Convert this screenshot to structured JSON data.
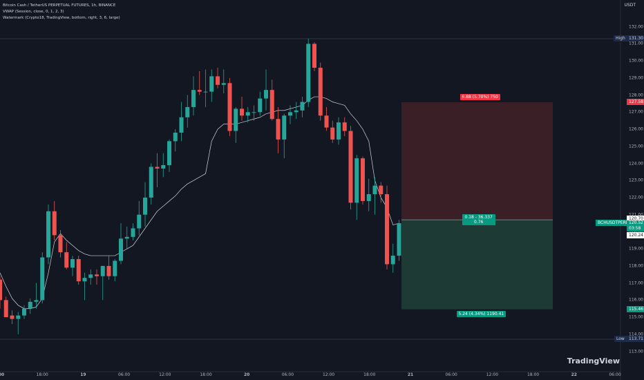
{
  "legend": {
    "symbol_line": "Bitcoin Cash / TetherUS PERPETUAL FUTURES, 1h, BINANCE",
    "vwap_line": "VWAP (Session, close, 0, 1, 2, 3)",
    "watermark_line": "Watermark (Crypto18, TradingView, bottom, right, 3, 6, large)"
  },
  "currency": "USDT",
  "watermark": "TradingView",
  "colors": {
    "up": "#26a69a",
    "down": "#ef5350",
    "vwap": "#d1d4dc",
    "bg": "#131722",
    "profit": "#1d3b34",
    "loss": "#3b1f26"
  },
  "y_ticks": [
    "132.00",
    "131.00",
    "130.00",
    "129.00",
    "128.00",
    "127.00",
    "126.00",
    "125.00",
    "124.00",
    "123.00",
    "122.00",
    "121.00",
    "120.00",
    "119.00",
    "118.00",
    "117.00",
    "116.00",
    "115.00",
    "114.00",
    "113.00"
  ],
  "x_ticks": [
    "00",
    "18:00",
    "19",
    "06:00",
    "12:00",
    "18:00",
    "20",
    "06:00",
    "12:00",
    "18:00",
    "21",
    "06:00",
    "12:00",
    "18:00",
    "22",
    "06:00"
  ],
  "labels": {
    "high_label": "High",
    "high_value": "131.30",
    "low_label": "Low",
    "low_value": "113.71",
    "stop_value": "127.58",
    "target_value": "115.46",
    "symbol_tag": "BCHUSDTPERP",
    "price_upper": "120.70",
    "price_current": "120.52",
    "price_countdown": "03:58",
    "price_lower": "120.24",
    "risk_text": "6.88 (5.70%) 750",
    "reward_text": "5.24 (4.34%) 1190.41",
    "position_text_1": "0.18 - 36.337",
    "position_text_2": "0.76"
  },
  "chart_data": {
    "type": "candlestick",
    "timeframe": "1h",
    "series": [
      {
        "name": "BCHUSDTPERP",
        "ohlc": [
          [
            117.2,
            117.4,
            115.5,
            116.0
          ],
          [
            116.0,
            116.2,
            115.1,
            115.0
          ],
          [
            115.1,
            115.4,
            114.6,
            114.9
          ],
          [
            114.9,
            115.3,
            114.0,
            115.1
          ],
          [
            115.1,
            115.7,
            114.9,
            115.5
          ],
          [
            115.5,
            116.1,
            115.2,
            115.9
          ],
          [
            115.9,
            117.0,
            115.5,
            116.0
          ],
          [
            116.0,
            118.8,
            115.8,
            118.5
          ],
          [
            118.5,
            121.6,
            118.1,
            121.2
          ],
          [
            121.2,
            121.8,
            119.5,
            119.8
          ],
          [
            119.8,
            120.1,
            118.5,
            118.8
          ],
          [
            118.8,
            119.4,
            117.8,
            117.9
          ],
          [
            117.9,
            118.6,
            117.4,
            118.4
          ],
          [
            118.4,
            118.6,
            116.9,
            117.1
          ],
          [
            117.1,
            117.6,
            116.0,
            117.3
          ],
          [
            117.3,
            117.8,
            116.9,
            117.5
          ],
          [
            117.5,
            117.8,
            116.9,
            117.4
          ],
          [
            117.4,
            118.0,
            116.0,
            118.0
          ],
          [
            118.0,
            118.6,
            117.2,
            117.4
          ],
          [
            117.4,
            118.4,
            117.1,
            118.3
          ],
          [
            118.3,
            120.5,
            118.1,
            119.6
          ],
          [
            119.6,
            120.3,
            119.0,
            119.7
          ],
          [
            119.7,
            120.5,
            119.5,
            120.2
          ],
          [
            120.2,
            121.8,
            119.8,
            121.0
          ],
          [
            121.0,
            122.9,
            120.3,
            122.0
          ],
          [
            122.0,
            124.0,
            121.6,
            123.8
          ],
          [
            123.8,
            124.6,
            122.6,
            123.7
          ],
          [
            123.7,
            124.6,
            123.2,
            123.9
          ],
          [
            123.9,
            125.4,
            123.5,
            125.3
          ],
          [
            125.3,
            126.0,
            124.7,
            125.8
          ],
          [
            125.8,
            127.6,
            125.3,
            126.7
          ],
          [
            126.7,
            128.0,
            126.1,
            127.3
          ],
          [
            127.3,
            129.1,
            126.8,
            128.3
          ],
          [
            128.3,
            129.4,
            128.0,
            128.2
          ],
          [
            128.2,
            129.5,
            127.3,
            128.2
          ],
          [
            128.2,
            129.5,
            127.6,
            129.1
          ],
          [
            129.1,
            129.6,
            128.4,
            128.6
          ],
          [
            128.6,
            129.5,
            128.1,
            128.7
          ],
          [
            128.7,
            129.0,
            125.6,
            125.9
          ],
          [
            125.9,
            127.3,
            125.2,
            127.2
          ],
          [
            127.2,
            127.9,
            126.5,
            126.8
          ],
          [
            126.8,
            127.3,
            126.4,
            127.0
          ],
          [
            127.0,
            127.4,
            126.5,
            127.0
          ],
          [
            127.0,
            128.2,
            126.8,
            127.8
          ],
          [
            127.8,
            129.5,
            127.1,
            128.3
          ],
          [
            128.3,
            128.9,
            126.5,
            126.6
          ],
          [
            126.6,
            127.3,
            124.6,
            125.4
          ],
          [
            125.4,
            126.9,
            124.3,
            126.8
          ],
          [
            126.8,
            127.4,
            126.3,
            127.0
          ],
          [
            127.0,
            127.6,
            126.6,
            127.1
          ],
          [
            127.1,
            127.9,
            126.7,
            127.6
          ],
          [
            127.6,
            131.3,
            127.3,
            131.0
          ],
          [
            131.0,
            131.1,
            129.4,
            129.6
          ],
          [
            129.6,
            129.9,
            126.5,
            126.8
          ],
          [
            126.8,
            127.3,
            125.9,
            126.1
          ],
          [
            126.1,
            126.5,
            125.2,
            125.4
          ],
          [
            125.4,
            126.7,
            125.1,
            126.4
          ],
          [
            126.4,
            126.7,
            125.6,
            125.9
          ],
          [
            125.9,
            126.2,
            121.3,
            121.7
          ],
          [
            121.7,
            124.5,
            120.7,
            124.3
          ],
          [
            124.3,
            124.4,
            121.6,
            121.8
          ],
          [
            121.8,
            123.1,
            121.2,
            122.2
          ],
          [
            122.2,
            123.2,
            121.0,
            122.7
          ],
          [
            122.7,
            122.9,
            121.7,
            122.2
          ],
          [
            122.2,
            122.7,
            117.8,
            118.1
          ],
          [
            118.1,
            119.3,
            117.6,
            118.6
          ],
          [
            118.6,
            120.7,
            118.3,
            120.5
          ]
        ]
      },
      {
        "name": "VWAP",
        "values": [
          117.6,
          116.8,
          116.1,
          115.7,
          115.5,
          115.5,
          115.6,
          116.1,
          117.6,
          119.4,
          119.9,
          119.5,
          119.2,
          118.9,
          118.7,
          118.6,
          118.6,
          118.6,
          118.6,
          118.6,
          118.8,
          119.0,
          119.2,
          119.7,
          120.2,
          120.7,
          121.2,
          121.5,
          121.8,
          122.1,
          122.5,
          122.8,
          123.0,
          123.2,
          123.4,
          125.3,
          126.0,
          126.3,
          126.3,
          126.3,
          126.4,
          126.5,
          126.6,
          126.7,
          126.9,
          127.0,
          127.1,
          127.1,
          127.2,
          127.3,
          127.4,
          127.7,
          127.9,
          127.9,
          127.8,
          127.6,
          127.5,
          127.4,
          126.9,
          126.5,
          126.0,
          125.3,
          123.0,
          122.0,
          121.4,
          120.4,
          120.5
        ]
      }
    ],
    "ylim": [
      113,
      132.4
    ],
    "high": 131.3,
    "low": 113.71,
    "position": {
      "type": "short",
      "entry": 120.7,
      "stop": 127.58,
      "target": 115.46
    }
  }
}
